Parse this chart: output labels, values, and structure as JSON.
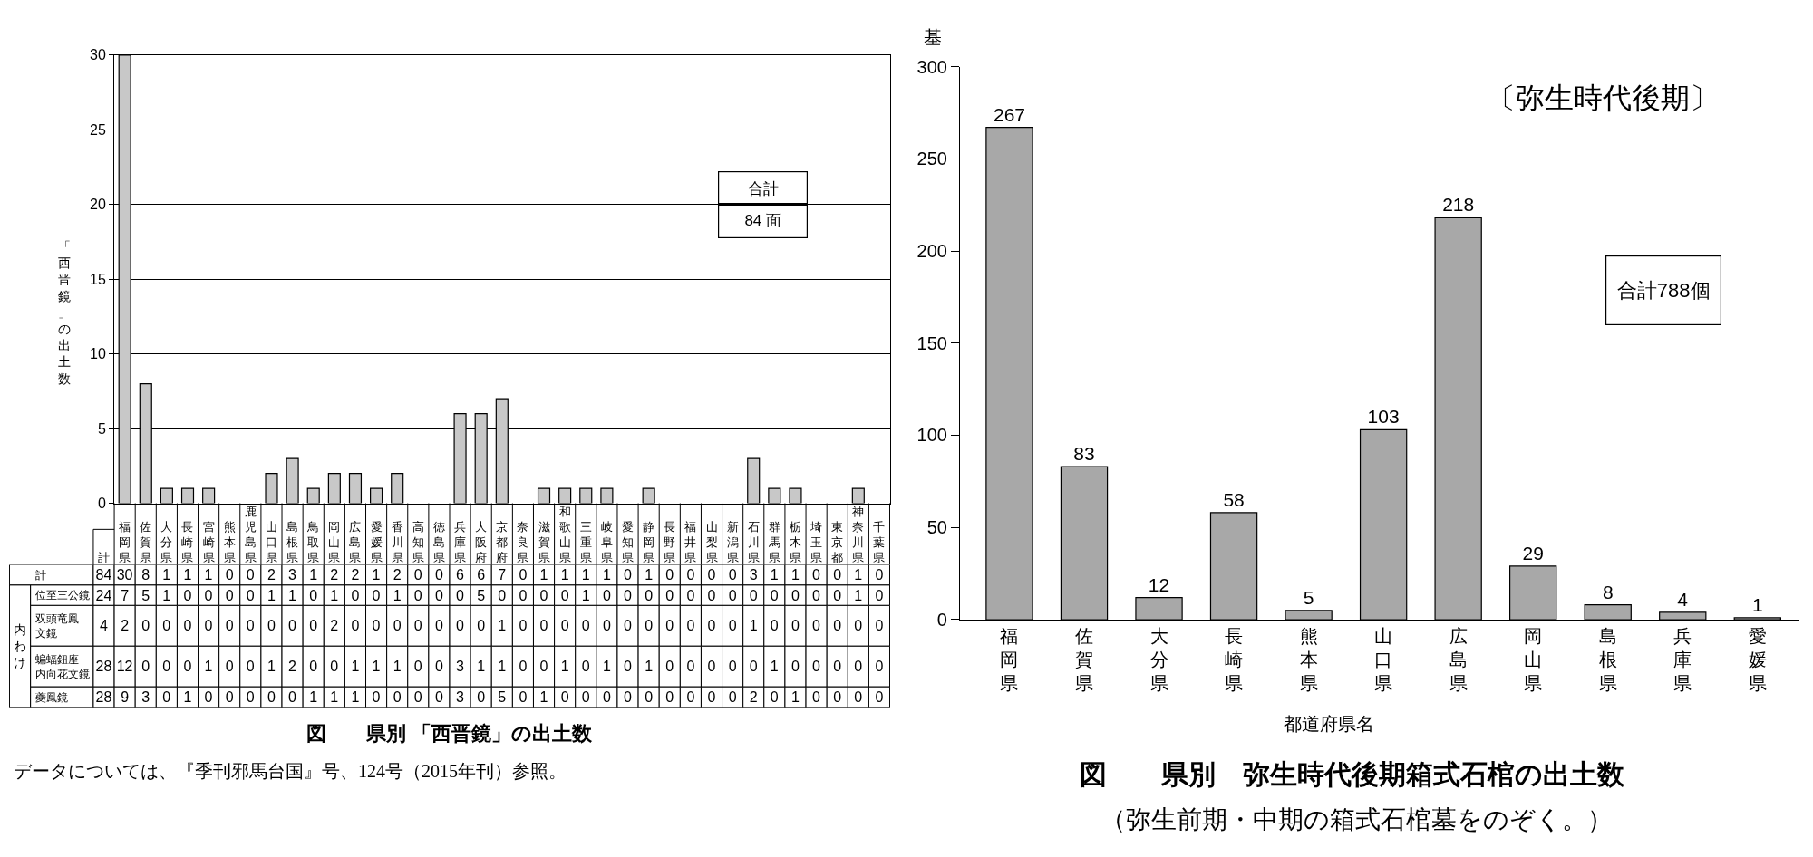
{
  "chart_data": [
    {
      "type": "bar",
      "title": "図　　県別 「西晋鏡」の出土数",
      "ylabel": "「西晋鏡」の出土数",
      "categories": [
        "福岡県",
        "佐賀県",
        "大分県",
        "長崎県",
        "宮崎県",
        "熊本県",
        "鹿児島県",
        "山口県",
        "島根県",
        "鳥取県",
        "岡山県",
        "広島県",
        "愛媛県",
        "香川県",
        "高知県",
        "徳島県",
        "兵庫県",
        "大阪府",
        "京都府",
        "奈良県",
        "滋賀県",
        "和歌山県",
        "三重県",
        "岐阜県",
        "愛知県",
        "静岡県",
        "長野県",
        "福井県",
        "山梨県",
        "新潟県",
        "石川県",
        "群馬県",
        "栃木県",
        "埼玉県",
        "東京都",
        "神奈川県",
        "千葉県"
      ],
      "values": [
        30,
        8,
        1,
        1,
        1,
        0,
        0,
        2,
        3,
        1,
        2,
        2,
        1,
        2,
        0,
        0,
        6,
        6,
        7,
        0,
        1,
        1,
        1,
        1,
        0,
        1,
        0,
        0,
        0,
        0,
        3,
        1,
        1,
        0,
        0,
        1,
        0
      ],
      "color": "#c8c8c8",
      "ylim": [
        0,
        30
      ],
      "yticks": [
        0,
        5,
        10,
        15,
        20,
        25,
        30
      ],
      "grid": "y",
      "tick_labels": "y",
      "annotations": [
        "合計",
        "84 面",
        "データについては、『季刊邪馬台国』号、124号（2015年刊）参照。"
      ]
    },
    {
      "type": "heatmap",
      "categories": [
        "計",
        "福岡県",
        "佐賀県",
        "大分県",
        "長崎県",
        "宮崎県",
        "熊本県",
        "鹿児島県",
        "山口県",
        "島根県",
        "鳥取県",
        "岡山県",
        "広島県",
        "愛媛県",
        "香川県",
        "高知県",
        "徳島県",
        "兵庫県",
        "大阪府",
        "京都府",
        "奈良県",
        "滋賀県",
        "和歌山県",
        "三重県",
        "岐阜県",
        "愛知県",
        "静岡県",
        "長野県",
        "福井県",
        "山梨県",
        "新潟県",
        "石川県",
        "群馬県",
        "栃木県",
        "埼玉県",
        "東京都",
        "神奈川県",
        "千葉県"
      ],
      "y_categories": [
        "計",
        "位至三公鏡",
        "双頭竜鳳文鏡",
        "蝙蝠鈕座内向花文鏡",
        "夔鳳鏡"
      ],
      "cells": [
        [
          84,
          30,
          8,
          1,
          1,
          1,
          0,
          0,
          2,
          3,
          1,
          2,
          2,
          1,
          2,
          0,
          0,
          6,
          6,
          7,
          0,
          1,
          1,
          1,
          1,
          0,
          1,
          0,
          0,
          0,
          0,
          3,
          1,
          1,
          0,
          0,
          1,
          0
        ],
        [
          24,
          7,
          5,
          1,
          0,
          0,
          0,
          0,
          1,
          1,
          0,
          1,
          0,
          0,
          1,
          0,
          0,
          0,
          5,
          0,
          0,
          0,
          0,
          1,
          0,
          0,
          0,
          0,
          0,
          0,
          0,
          0,
          0,
          0,
          0,
          0,
          1,
          0
        ],
        [
          4,
          2,
          0,
          0,
          0,
          0,
          0,
          0,
          0,
          0,
          0,
          2,
          0,
          0,
          0,
          0,
          0,
          0,
          0,
          1,
          0,
          0,
          0,
          0,
          0,
          0,
          0,
          0,
          0,
          0,
          0,
          1,
          0,
          0,
          0,
          0,
          0,
          0
        ],
        [
          28,
          12,
          0,
          0,
          0,
          1,
          0,
          0,
          1,
          2,
          0,
          0,
          1,
          1,
          1,
          0,
          0,
          3,
          1,
          1,
          0,
          0,
          1,
          0,
          1,
          0,
          1,
          0,
          0,
          0,
          0,
          0,
          1,
          0,
          0,
          0,
          0,
          0
        ],
        [
          28,
          9,
          3,
          0,
          1,
          0,
          0,
          0,
          0,
          0,
          1,
          1,
          1,
          0,
          0,
          0,
          0,
          3,
          0,
          5,
          0,
          1,
          0,
          0,
          0,
          0,
          0,
          0,
          0,
          0,
          0,
          2,
          0,
          1,
          0,
          0,
          0,
          0
        ]
      ],
      "data_labels": true,
      "annotations": [
        "内わけ"
      ]
    },
    {
      "type": "bar",
      "title": "図　　県別　弥生時代後期箱式石棺の出土数",
      "subtitle": "（弥生前期・中期の箱式石棺墓をのぞく。）",
      "xlabel": "都道府県名",
      "ylabel": "基",
      "categories": [
        "福岡県",
        "佐賀県",
        "大分県",
        "長崎県",
        "熊本県",
        "山口県",
        "広島県",
        "岡山県",
        "島根県",
        "兵庫県",
        "愛媛県"
      ],
      "values": [
        267,
        83,
        12,
        58,
        5,
        103,
        218,
        29,
        8,
        4,
        1
      ],
      "color": "#a8a8a8",
      "ylim": [
        0,
        300
      ],
      "yticks": [
        0,
        50,
        100,
        150,
        200,
        250,
        300
      ],
      "data_labels": true,
      "annotations": [
        "〔弥生時代後期〕",
        "合計788個"
      ]
    }
  ]
}
